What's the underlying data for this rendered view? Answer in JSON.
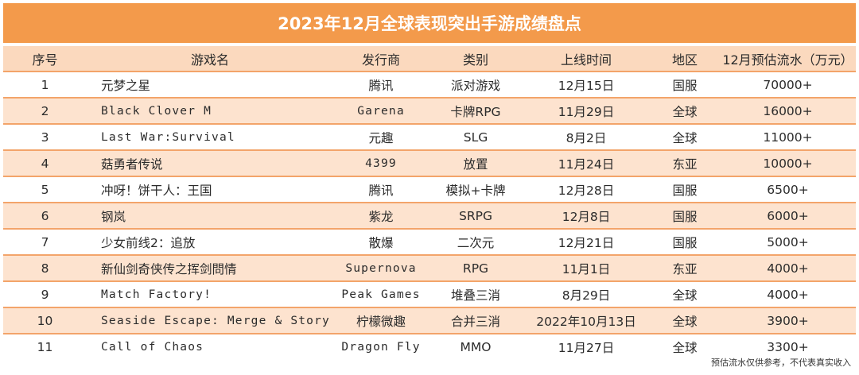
{
  "title": "2023年12月全球表现突出手游成绩盘点",
  "columns": [
    "序号",
    "游戏名",
    "发行商",
    "类别",
    "上线时间",
    "地区",
    "12月预估流水（万元）"
  ],
  "rows": [
    {
      "rank": "1",
      "name": "元梦之星",
      "publisher": "腾讯",
      "category": "派对游戏",
      "launch": "12月15日",
      "region": "国服",
      "revenue": "70000+"
    },
    {
      "rank": "2",
      "name": "Black Clover M",
      "publisher": "Garena",
      "category": "卡牌RPG",
      "launch": "11月29日",
      "region": "全球",
      "revenue": "16000+"
    },
    {
      "rank": "3",
      "name": "Last War:Survival",
      "publisher": "元趣",
      "category": "SLG",
      "launch": "8月2日",
      "region": "全球",
      "revenue": "11000+"
    },
    {
      "rank": "4",
      "name": "菇勇者传说",
      "publisher": "4399",
      "category": "放置",
      "launch": "11月24日",
      "region": "东亚",
      "revenue": "10000+"
    },
    {
      "rank": "5",
      "name": "冲呀！饼干人：王国",
      "publisher": "腾讯",
      "category": "模拟+卡牌",
      "launch": "12月28日",
      "region": "国服",
      "revenue": "6500+"
    },
    {
      "rank": "6",
      "name": "钢岚",
      "publisher": "紫龙",
      "category": "SRPG",
      "launch": "12月8日",
      "region": "国服",
      "revenue": "6000+"
    },
    {
      "rank": "7",
      "name": "少女前线2：追放",
      "publisher": "散爆",
      "category": "二次元",
      "launch": "12月21日",
      "region": "国服",
      "revenue": "5000+"
    },
    {
      "rank": "8",
      "name": "新仙剑奇侠传之挥剑問情",
      "publisher": "Supernova",
      "category": "RPG",
      "launch": "11月1日",
      "region": "东亚",
      "revenue": "4000+"
    },
    {
      "rank": "9",
      "name": "Match Factory!",
      "publisher": "Peak Games",
      "category": "堆叠三消",
      "launch": "8月29日",
      "region": "全球",
      "revenue": "4000+"
    },
    {
      "rank": "10",
      "name": "Seaside Escape: Merge & Story",
      "publisher": "柠檬微趣",
      "category": "合并三消",
      "launch": "2022年10月13日",
      "region": "全球",
      "revenue": "3900+"
    },
    {
      "rank": "11",
      "name": "Call of Chaos",
      "publisher": "Dragon Fly",
      "category": "MMO",
      "launch": "11月27日",
      "region": "全球",
      "revenue": "3300+"
    }
  ],
  "footnote": "预估流水仅供参考，不代表真实收入"
}
